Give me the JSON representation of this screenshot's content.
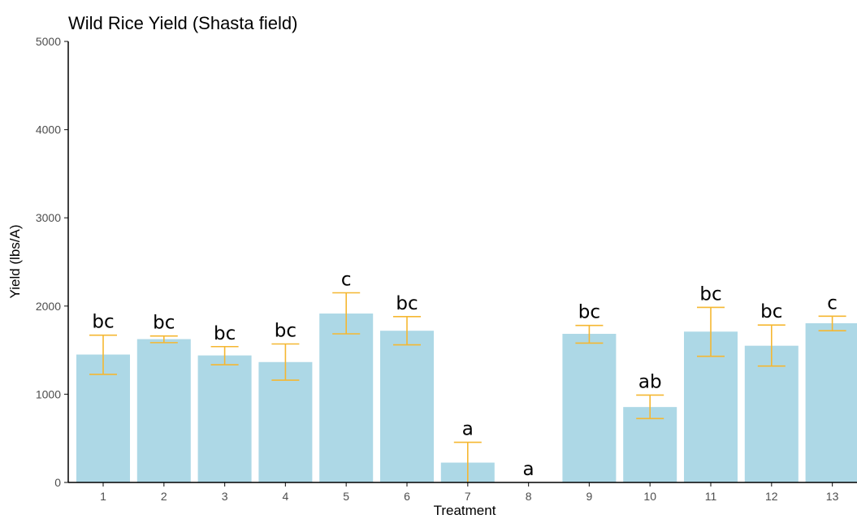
{
  "chart_data": {
    "type": "bar",
    "title": "Wild Rice Yield (Shasta field)",
    "xlabel": "Treatment",
    "ylabel": "Yield (lbs/A)",
    "ylim": [
      0,
      5000
    ],
    "yticks": [
      0,
      1000,
      2000,
      3000,
      4000,
      5000
    ],
    "categories": [
      "1",
      "2",
      "3",
      "4",
      "5",
      "6",
      "7",
      "8",
      "9",
      "10",
      "11",
      "12",
      "13"
    ],
    "values": [
      1450,
      1625,
      1440,
      1365,
      1915,
      1720,
      225,
      0,
      1685,
      855,
      1710,
      1550,
      1805
    ],
    "error_low": [
      1225,
      1585,
      1335,
      1160,
      1685,
      1560,
      0,
      0,
      1580,
      725,
      1430,
      1320,
      1720
    ],
    "error_high": [
      1670,
      1660,
      1540,
      1570,
      2150,
      1880,
      455,
      0,
      1780,
      990,
      1985,
      1785,
      1885
    ],
    "significance_labels": [
      "bc",
      "bc",
      "bc",
      "bc",
      "c",
      "bc",
      "a",
      "a",
      "bc",
      "ab",
      "bc",
      "bc",
      "c"
    ],
    "grid": false,
    "colors": {
      "bar": "#add8e6",
      "error_bar": "#f5b731",
      "axis": "#000000",
      "tick_text": "#4d4d4d"
    }
  }
}
